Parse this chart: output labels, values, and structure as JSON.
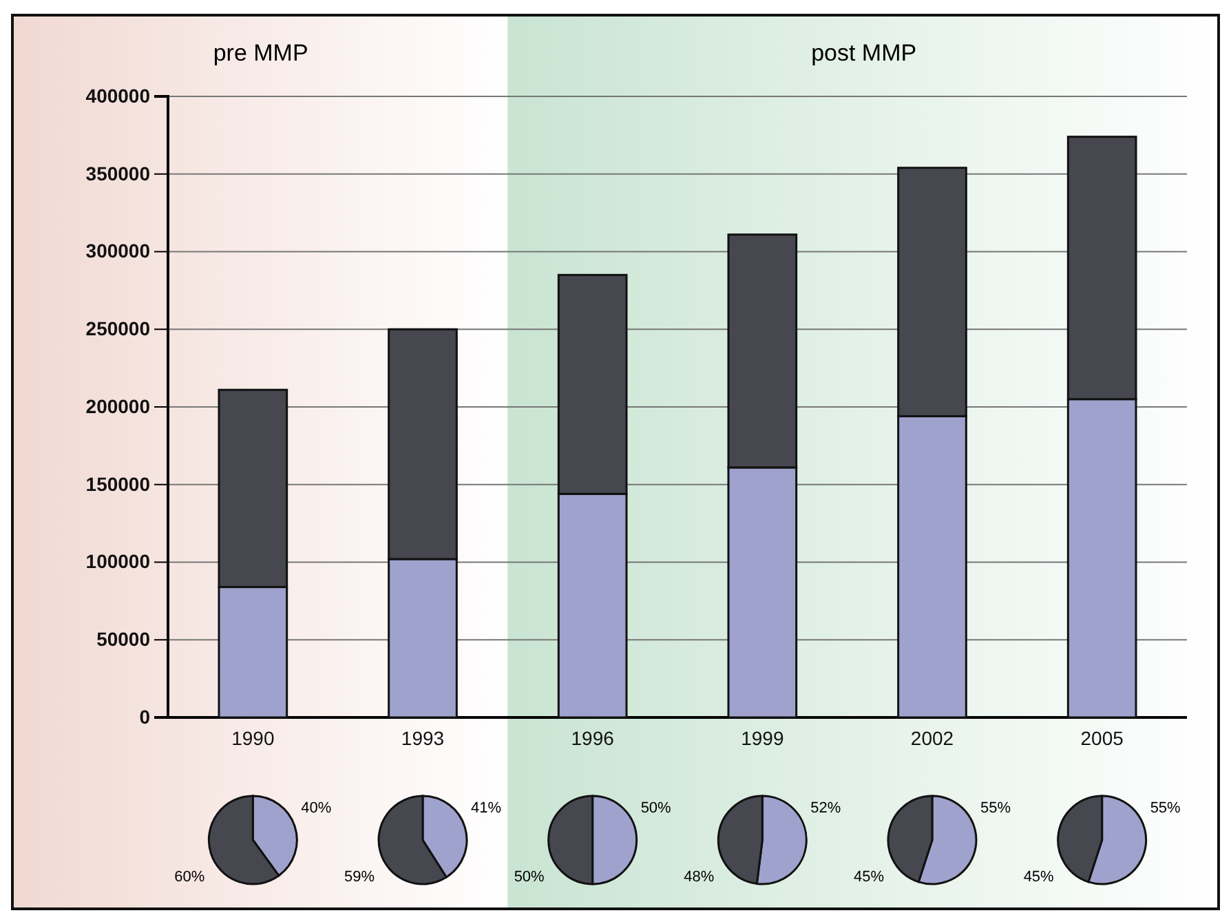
{
  "chart_data": [
    {
      "type": "bar",
      "stacked": true,
      "categories": [
        "1990",
        "1993",
        "1996",
        "1999",
        "2002",
        "2005"
      ],
      "series": [
        {
          "color": "#9fa2cc",
          "values": [
            84000,
            102000,
            144000,
            161000,
            194000,
            205000
          ]
        },
        {
          "color": "#46474f",
          "values": [
            127000,
            148000,
            141000,
            150000,
            160000,
            169000
          ]
        }
      ],
      "ylim": [
        0,
        400000
      ],
      "yticks": [
        0,
        50000,
        100000,
        150000,
        200000,
        250000,
        300000,
        350000,
        400000
      ],
      "grid": "y",
      "bands": [
        {
          "axis": "x",
          "from": "1990",
          "to": "1993",
          "label": "pre MMP",
          "color": "#f1d9d2"
        },
        {
          "axis": "x",
          "from": "1996",
          "to": "2005",
          "label": "post MMP",
          "color": "#c9e4d2"
        }
      ]
    },
    {
      "type": "pie",
      "categories": [
        null,
        null
      ],
      "values": [
        40,
        60
      ],
      "colors": [
        "#9fa2cc",
        "#46474f"
      ],
      "value_labels": [
        "40%",
        "60%"
      ]
    },
    {
      "type": "pie",
      "categories": [
        null,
        null
      ],
      "values": [
        41,
        59
      ],
      "colors": [
        "#9fa2cc",
        "#46474f"
      ],
      "value_labels": [
        "41%",
        "59%"
      ]
    },
    {
      "type": "pie",
      "categories": [
        null,
        null
      ],
      "values": [
        50,
        50
      ],
      "colors": [
        "#9fa2cc",
        "#46474f"
      ],
      "value_labels": [
        "50%",
        "50%"
      ]
    },
    {
      "type": "pie",
      "categories": [
        null,
        null
      ],
      "values": [
        52,
        48
      ],
      "colors": [
        "#9fa2cc",
        "#46474f"
      ],
      "value_labels": [
        "52%",
        "48%"
      ]
    },
    {
      "type": "pie",
      "categories": [
        null,
        null
      ],
      "values": [
        55,
        45
      ],
      "colors": [
        "#9fa2cc",
        "#46474f"
      ],
      "value_labels": [
        "55%",
        "45%"
      ]
    },
    {
      "type": "pie",
      "categories": [
        null,
        null
      ],
      "values": [
        55,
        45
      ],
      "colors": [
        "#9fa2cc",
        "#46474f"
      ],
      "value_labels": [
        "55%",
        "45%"
      ]
    }
  ]
}
